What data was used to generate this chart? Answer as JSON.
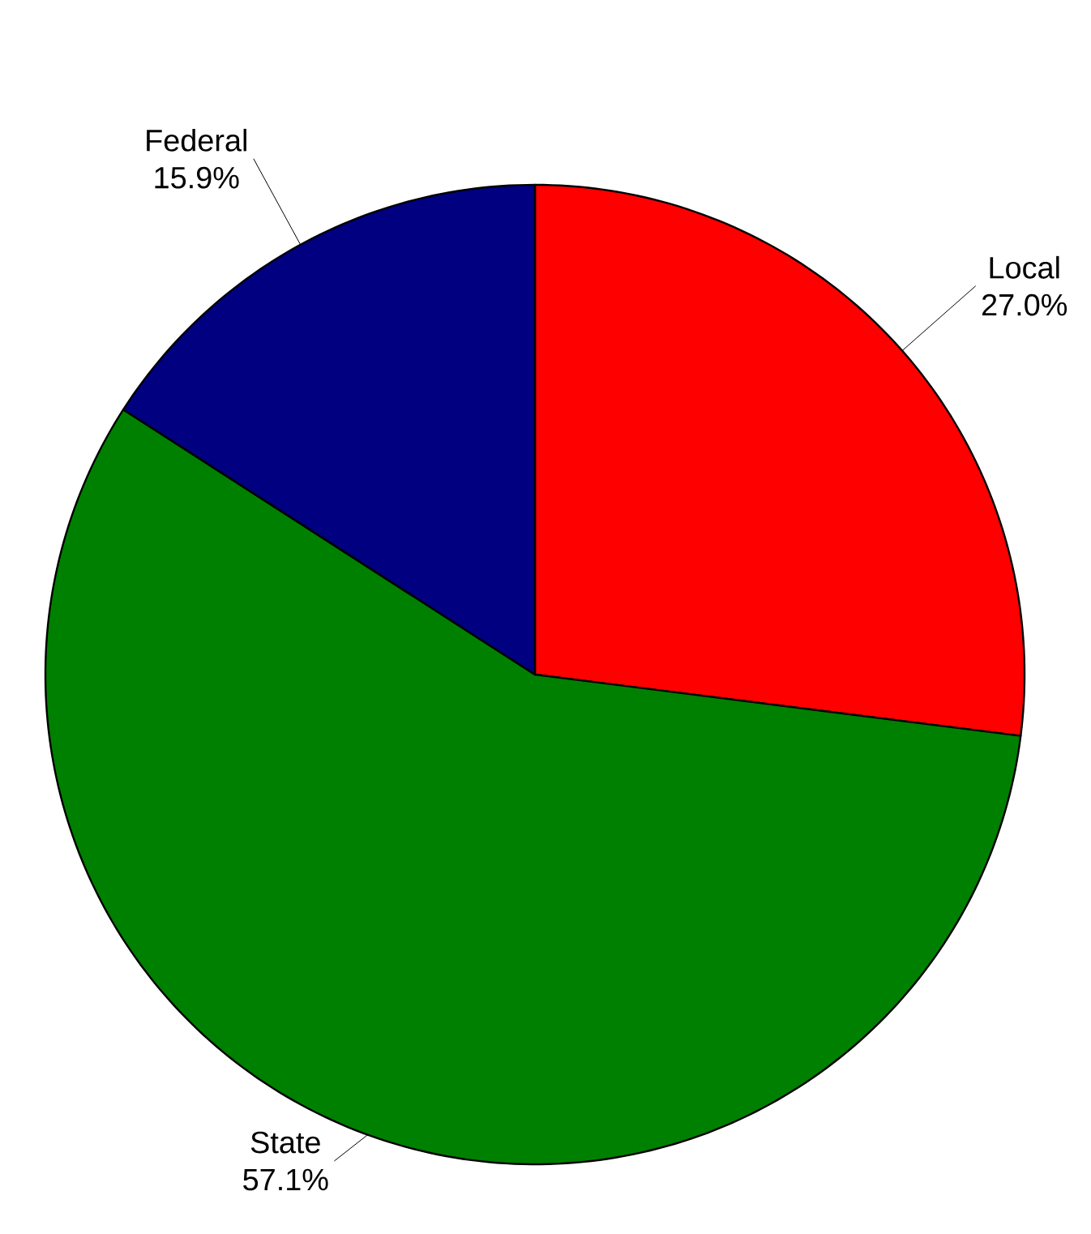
{
  "chart_data": {
    "type": "pie",
    "categories": [
      "Local",
      "State",
      "Federal"
    ],
    "values": [
      27.0,
      57.1,
      15.9
    ],
    "value_labels": [
      "27.0%",
      "57.1%",
      "15.9%"
    ],
    "colors": [
      "#ff0000",
      "#008000",
      "#000080"
    ]
  }
}
